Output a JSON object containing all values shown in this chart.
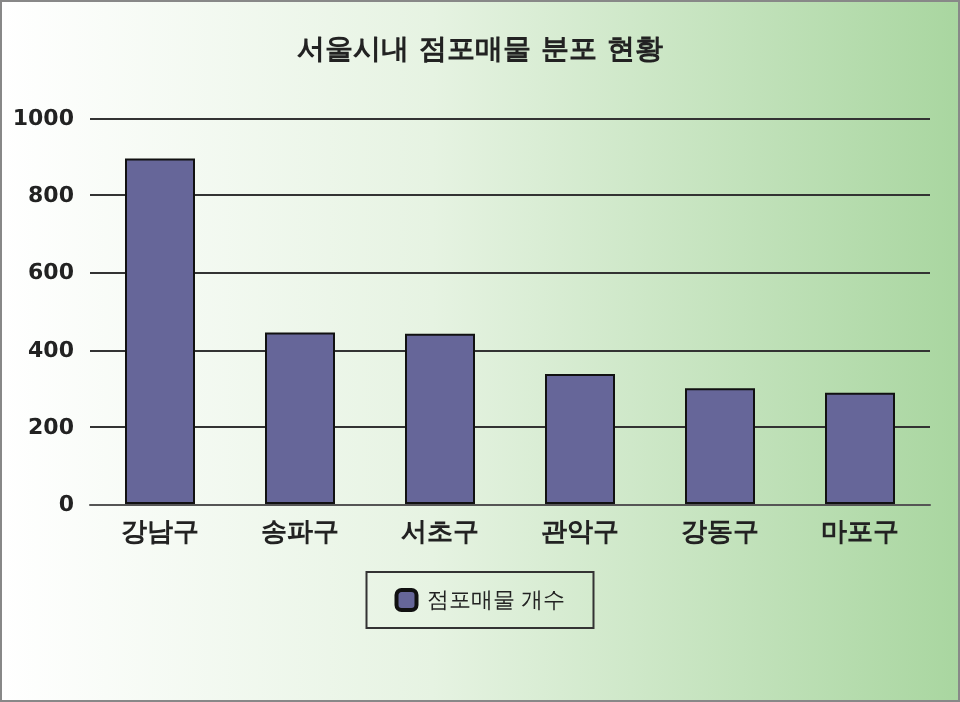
{
  "chart_data": {
    "type": "bar",
    "title": "서울시내 점포매물 분포 현황",
    "categories": [
      "강남구",
      "송파구",
      "서초구",
      "관악구",
      "강동구",
      "마포구"
    ],
    "series": [
      {
        "name": "점포매물 개수",
        "color": "#666699",
        "values": [
          895,
          444,
          441,
          337,
          300,
          288
        ]
      }
    ],
    "ylim": [
      0,
      1000
    ],
    "yticks": [
      0,
      200,
      400,
      600,
      800,
      1000
    ],
    "grid": "y",
    "legend": "bottom"
  }
}
